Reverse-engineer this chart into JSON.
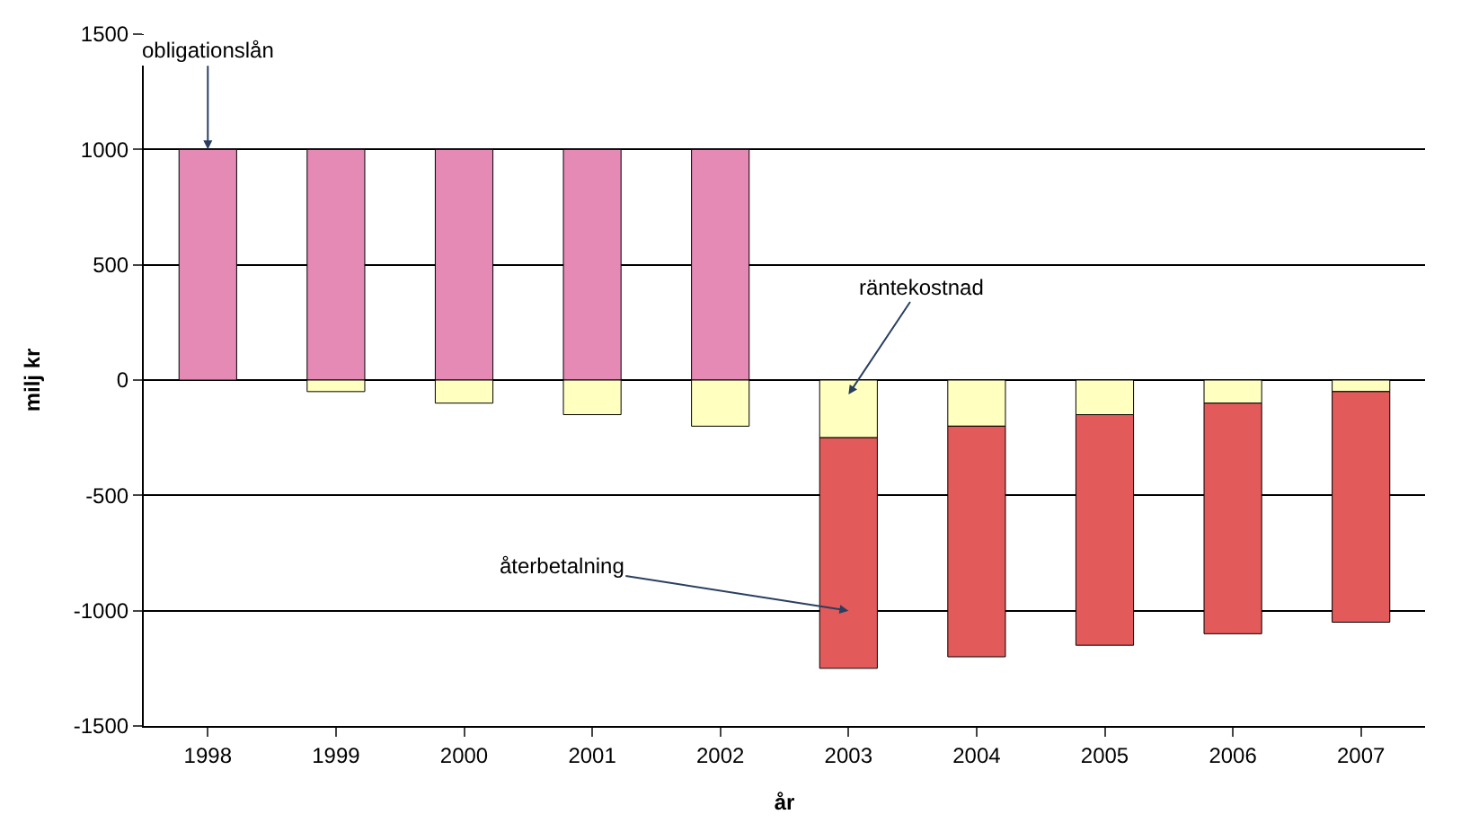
{
  "chart_data": {
    "type": "bar",
    "stacked": true,
    "xlabel": "år",
    "ylabel": "milj kr",
    "categories": [
      "1998",
      "1999",
      "2000",
      "2001",
      "2002",
      "2003",
      "2004",
      "2005",
      "2006",
      "2007"
    ],
    "series": [
      {
        "name": "obligationslån",
        "color": "#e48ab4",
        "values": [
          1000,
          1000,
          1000,
          1000,
          1000,
          null,
          null,
          null,
          null,
          null
        ]
      },
      {
        "name": "räntekostnad",
        "color": "#ffffc0",
        "values": [
          null,
          -50,
          -100,
          -150,
          -200,
          -250,
          -200,
          -150,
          -100,
          -50
        ]
      },
      {
        "name": "återbetalning",
        "color": "#e25a5a",
        "values": [
          null,
          null,
          null,
          null,
          null,
          -1000,
          -1000,
          -1000,
          -1000,
          -1000
        ]
      }
    ],
    "ylim": [
      -1500,
      1500
    ],
    "yticks": [
      -1500,
      -1000,
      -500,
      0,
      500,
      1000,
      1500
    ],
    "grid": "y",
    "legend": false
  }
}
